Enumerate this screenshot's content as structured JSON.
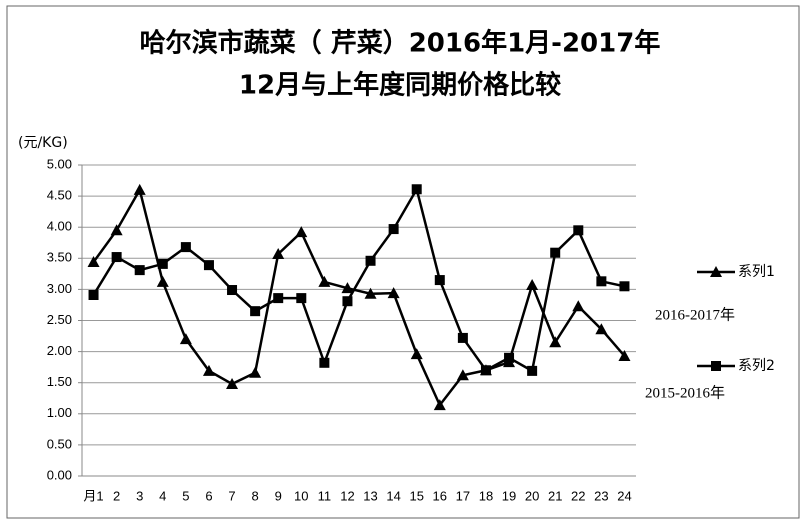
{
  "chart_data": {
    "type": "line",
    "title": [
      "哈尔滨市蔬菜（ 芹菜）2016年1月-2017年",
      "12月与上年度同期价格比较"
    ],
    "y_axis_label": "(元/KG)",
    "categories": [
      "月1",
      "2",
      "3",
      "4",
      "5",
      "6",
      "7",
      "8",
      "9",
      "10",
      "11",
      "12",
      "13",
      "14",
      "15",
      "16",
      "17",
      "18",
      "19",
      "20",
      "21",
      "22",
      "23",
      "24"
    ],
    "series": [
      {
        "name": "系列1",
        "color": "#000000",
        "marker": "triangle",
        "values": [
          3.44,
          3.95,
          4.6,
          3.12,
          2.2,
          1.69,
          1.48,
          1.66,
          3.57,
          3.92,
          3.12,
          3.02,
          2.93,
          2.94,
          1.96,
          1.14,
          1.62,
          1.7,
          1.83,
          3.07,
          2.15,
          2.73,
          2.36,
          1.93
        ]
      },
      {
        "name": "系列2",
        "color": "#000000",
        "marker": "square",
        "values": [
          2.91,
          3.52,
          3.31,
          3.41,
          3.68,
          3.39,
          2.99,
          2.65,
          2.86,
          2.86,
          1.82,
          2.81,
          3.46,
          3.97,
          4.61,
          3.15,
          2.22,
          1.7,
          1.9,
          1.69,
          3.59,
          3.95,
          3.13,
          3.05
        ]
      }
    ],
    "annotations": [
      "2016-2017年",
      "2015-2016年"
    ],
    "ylim": [
      0,
      5
    ],
    "yticks": [
      {
        "value": 0,
        "label": "0.00"
      },
      {
        "value": 0.5,
        "label": "0.50"
      },
      {
        "value": 1,
        "label": "1.00"
      },
      {
        "value": 1.5,
        "label": "1.50"
      },
      {
        "value": 2,
        "label": "2.00"
      },
      {
        "value": 2.5,
        "label": "2.50"
      },
      {
        "value": 3,
        "label": "3.00"
      },
      {
        "value": 3.5,
        "label": "3.50"
      },
      {
        "value": 4,
        "label": "4.00"
      },
      {
        "value": 4.5,
        "label": "4.50"
      },
      {
        "value": 5,
        "label": "5.00"
      }
    ],
    "grid": true,
    "legend": "right"
  }
}
